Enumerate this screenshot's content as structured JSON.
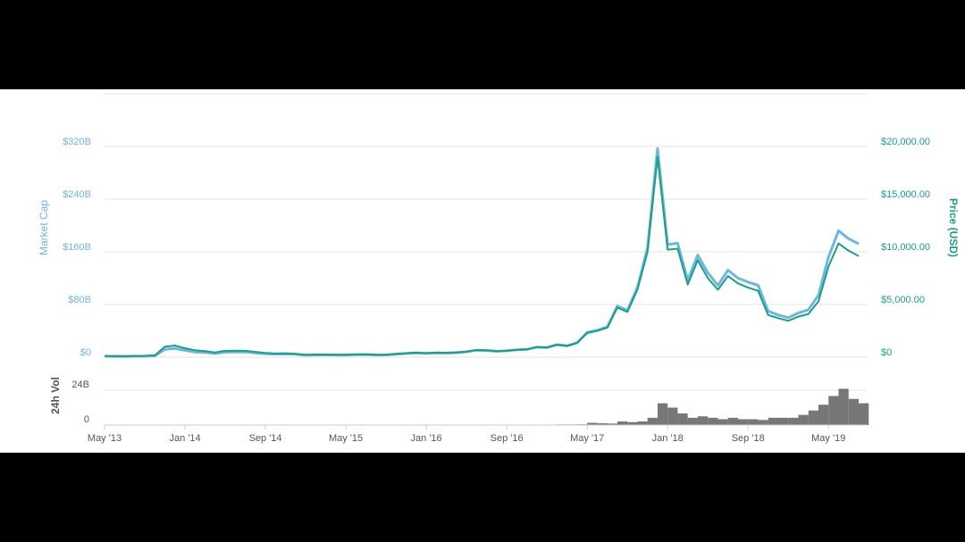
{
  "chart_data": [
    {
      "type": "line",
      "ylabel": "Market Cap",
      "y2label": "Price (USD)",
      "x": [
        0,
        1,
        2,
        3,
        4,
        5,
        6,
        7,
        8,
        9,
        10,
        11,
        12,
        13,
        14,
        15,
        16,
        17,
        18,
        19,
        20,
        21,
        22,
        23,
        24,
        25,
        26,
        27,
        28,
        29,
        30,
        31,
        32,
        33,
        34,
        35,
        36,
        37,
        38,
        39,
        40,
        41,
        42,
        43,
        44,
        45,
        46,
        47,
        48,
        49,
        50,
        51,
        52,
        53,
        54,
        55,
        56,
        57,
        58,
        59,
        60,
        61,
        62,
        63,
        64,
        65,
        66,
        67,
        68,
        69,
        70,
        71,
        72,
        73,
        74,
        75
      ],
      "xlim": [
        0,
        75.8
      ],
      "ylim": [
        0,
        400
      ],
      "yticks": [
        {
          "value": 0,
          "label": "$0"
        },
        {
          "value": 80,
          "label": "$80B"
        },
        {
          "value": 160,
          "label": "$160B"
        },
        {
          "value": 240,
          "label": "$240B"
        },
        {
          "value": 320,
          "label": "$320B"
        }
      ],
      "y2lim": [
        0,
        25000
      ],
      "y2ticks": [
        {
          "value": 0,
          "label": "$0"
        },
        {
          "value": 5000,
          "label": "$5,000.00"
        },
        {
          "value": 10000,
          "label": "$10,000.00"
        },
        {
          "value": 15000,
          "label": "$15,000.00"
        },
        {
          "value": 20000,
          "label": "$20,000.00"
        }
      ],
      "grid": true,
      "series": [
        {
          "color": "#6cb7e0",
          "values": [
            1.3,
            1.2,
            1.0,
            1.4,
            1.5,
            2.0,
            11.8,
            13.1,
            10.3,
            7.9,
            7.1,
            5.6,
            7.6,
            7.9,
            7.7,
            6.5,
            5.2,
            4.6,
            4.9,
            4.3,
            3.0,
            3.4,
            3.5,
            3.2,
            3.3,
            3.7,
            4.0,
            3.3,
            3.4,
            4.5,
            5.5,
            6.4,
            5.7,
            6.5,
            6.3,
            6.9,
            8.2,
            10.6,
            10.1,
            9.0,
            9.6,
            11.1,
            11.8,
            15.3,
            14.7,
            19.0,
            17.2,
            21.9,
            37.5,
            40.8,
            45.9,
            77.6,
            71.0,
            106.2,
            166,
            317,
            171,
            173,
            117,
            155,
            128,
            109,
            132,
            120,
            114,
            109,
            70,
            64,
            60,
            67,
            72,
            94,
            152,
            192,
            180,
            172
          ]
        },
        {
          "color": "#1a9e86",
          "axis": "y2",
          "values": [
            120,
            110,
            90,
            120,
            130,
            170,
            1000,
            1100,
            850,
            650,
            580,
            450,
            600,
            620,
            600,
            500,
            400,
            350,
            370,
            320,
            220,
            250,
            250,
            230,
            235,
            260,
            280,
            230,
            235,
            310,
            370,
            430,
            380,
            430,
            415,
            450,
            530,
            680,
            650,
            575,
            610,
            700,
            740,
            960,
            920,
            1180,
            1070,
            1350,
            2300,
            2500,
            2800,
            4700,
            4300,
            6400,
            10000,
            19000,
            10200,
            10300,
            6900,
            9200,
            7500,
            6400,
            7700,
            7000,
            6600,
            6300,
            4000,
            3700,
            3450,
            3850,
            4100,
            5300,
            8600,
            10800,
            10100,
            9600
          ]
        }
      ]
    },
    {
      "type": "bar",
      "ylabel": "24h Vol",
      "x": [
        0,
        1,
        2,
        3,
        4,
        5,
        6,
        7,
        8,
        9,
        10,
        11,
        12,
        13,
        14,
        15,
        16,
        17,
        18,
        19,
        20,
        21,
        22,
        23,
        24,
        25,
        26,
        27,
        28,
        29,
        30,
        31,
        32,
        33,
        34,
        35,
        36,
        37,
        38,
        39,
        40,
        41,
        42,
        43,
        44,
        45,
        46,
        47,
        48,
        49,
        50,
        51,
        52,
        53,
        54,
        55,
        56,
        57,
        58,
        59,
        60,
        61,
        62,
        63,
        64,
        65,
        66,
        67,
        68,
        69,
        70,
        71,
        72,
        73,
        74,
        75
      ],
      "xlim": [
        0,
        75.8
      ],
      "xticks": [
        {
          "value": 0,
          "label": "May '13"
        },
        {
          "value": 8,
          "label": "Jan '14"
        },
        {
          "value": 16,
          "label": "Sep '14"
        },
        {
          "value": 24,
          "label": "May '15"
        },
        {
          "value": 32,
          "label": "Jan '16"
        },
        {
          "value": 40,
          "label": "Sep '16"
        },
        {
          "value": 48,
          "label": "May '17"
        },
        {
          "value": 56,
          "label": "Jan '18"
        },
        {
          "value": 64,
          "label": "Sep '18"
        },
        {
          "value": 72,
          "label": "May '19"
        }
      ],
      "ylim": [
        0,
        40
      ],
      "yticks": [
        0,
        {
          "value": 24,
          "label": "24B"
        }
      ],
      "color": "#777777",
      "values": [
        0.05,
        0.05,
        0.05,
        0.05,
        0.05,
        0.05,
        0.1,
        0.1,
        0.1,
        0.1,
        0.1,
        0.1,
        0.1,
        0.1,
        0.1,
        0.1,
        0.1,
        0.1,
        0.1,
        0.1,
        0.1,
        0.1,
        0.1,
        0.1,
        0.1,
        0.1,
        0.1,
        0.1,
        0.1,
        0.1,
        0.1,
        0.1,
        0.1,
        0.1,
        0.1,
        0.1,
        0.1,
        0.1,
        0.1,
        0.1,
        0.1,
        0.2,
        0.2,
        0.3,
        0.3,
        0.4,
        0.4,
        0.5,
        1.5,
        1.2,
        1.0,
        2.5,
        2.0,
        2.5,
        5,
        15,
        12,
        8,
        5,
        6,
        5,
        4,
        5,
        4,
        4,
        3.5,
        5,
        5,
        5,
        7,
        10,
        14,
        20,
        25,
        18,
        15
      ]
    }
  ]
}
